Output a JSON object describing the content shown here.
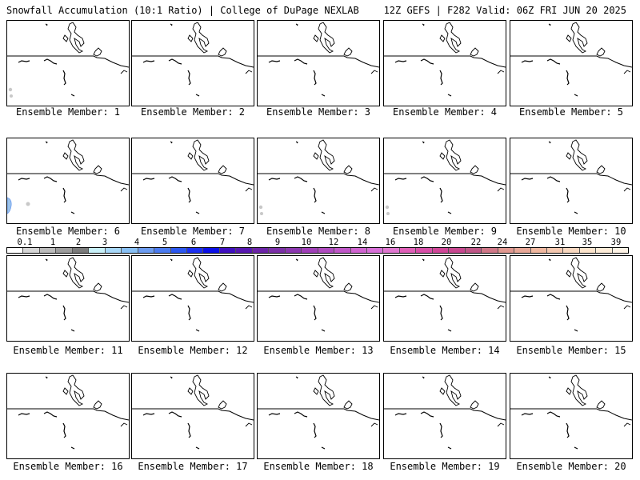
{
  "header": {
    "left": "Snowfall Accumulation (10:1 Ratio) | College of DuPage NEXLAB",
    "right": "12Z GEFS | F282 Valid: 06Z FRI JUN 20 2025"
  },
  "members": [
    {
      "label": "Ensemble Member: 1",
      "snow": "trace-west"
    },
    {
      "label": "Ensemble Member: 2",
      "snow": ""
    },
    {
      "label": "Ensemble Member: 3",
      "snow": ""
    },
    {
      "label": "Ensemble Member: 4",
      "snow": ""
    },
    {
      "label": "Ensemble Member: 5",
      "snow": ""
    },
    {
      "label": "Ensemble Member: 6",
      "snow": "light-west"
    },
    {
      "label": "Ensemble Member: 7",
      "snow": ""
    },
    {
      "label": "Ensemble Member: 8",
      "snow": "trace-west"
    },
    {
      "label": "Ensemble Member: 9",
      "snow": "trace-west"
    },
    {
      "label": "Ensemble Member: 10",
      "snow": ""
    },
    {
      "label": "Ensemble Member: 11",
      "snow": ""
    },
    {
      "label": "Ensemble Member: 12",
      "snow": ""
    },
    {
      "label": "Ensemble Member: 13",
      "snow": ""
    },
    {
      "label": "Ensemble Member: 14",
      "snow": ""
    },
    {
      "label": "Ensemble Member: 15",
      "snow": ""
    },
    {
      "label": "Ensemble Member: 16",
      "snow": ""
    },
    {
      "label": "Ensemble Member: 17",
      "snow": ""
    },
    {
      "label": "Ensemble Member: 18",
      "snow": ""
    },
    {
      "label": "Ensemble Member: 19",
      "snow": ""
    },
    {
      "label": "Ensemble Member: 20",
      "snow": ""
    }
  ],
  "colorbar": {
    "ticks": [
      "0.1",
      "1",
      "2",
      "3",
      "4",
      "5",
      "6",
      "7",
      "8",
      "9",
      "10",
      "12",
      "14",
      "16",
      "18",
      "20",
      "22",
      "24",
      "27",
      "31",
      "35",
      "39"
    ],
    "colors": [
      "#ffffff",
      "#d6d6d6",
      "#bcbcbc",
      "#9d9d9d",
      "#7c7c7c",
      "#c8f0f8",
      "#a8d8f8",
      "#88c0f4",
      "#6c9cf0",
      "#4c7cf0",
      "#2c58f0",
      "#1c30f0",
      "#0c10e8",
      "#4010c0",
      "#5818b0",
      "#6c24a8",
      "#7c30a8",
      "#8c38b0",
      "#a040b8",
      "#b04cc0",
      "#c058c8",
      "#d064d0",
      "#d870d8",
      "#e078d0",
      "#e060b8",
      "#d850a8",
      "#d04898",
      "#c84890",
      "#c05888",
      "#d07888",
      "#e09890",
      "#e8a898",
      "#f0b8a0",
      "#f4c8b0",
      "#f8d8c0",
      "#fce4cc",
      "#fdecd8",
      "#fef3e6"
    ]
  }
}
